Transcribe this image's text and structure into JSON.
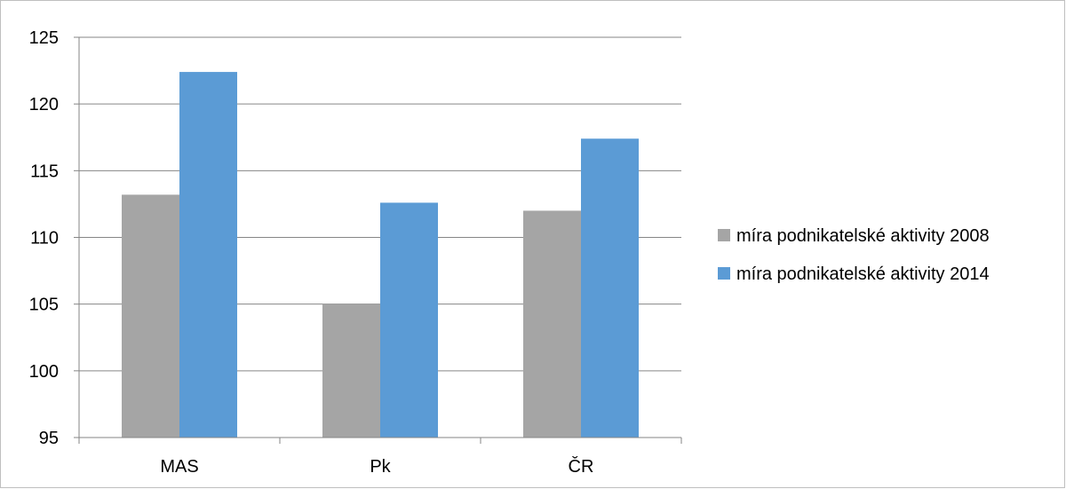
{
  "chart_data": {
    "type": "bar",
    "title": "",
    "xlabel": "",
    "ylabel": "",
    "categories": [
      "MAS",
      "Pk",
      "ČR"
    ],
    "series": [
      {
        "name": "míra podnikatelské aktivity 2008",
        "color": "#a5a5a5",
        "values": [
          113.2,
          105.0,
          112.0
        ]
      },
      {
        "name": "míra podnikatelské aktivity 2014",
        "color": "#5b9bd5",
        "values": [
          122.4,
          112.6,
          117.4
        ]
      }
    ],
    "ylim": [
      95,
      125
    ],
    "yticks": [
      "95",
      "100",
      "105",
      "110",
      "115",
      "120",
      "125"
    ],
    "grid": true,
    "legend_position": "right"
  }
}
